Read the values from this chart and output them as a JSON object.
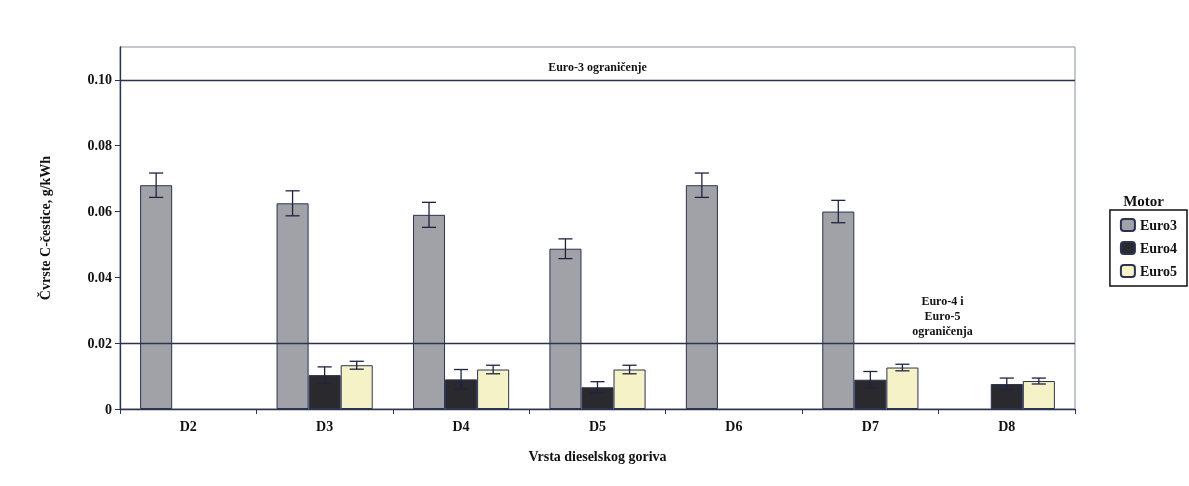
{
  "chart_data": {
    "type": "bar",
    "xlabel": "Vrsta dieselskog goriva",
    "ylabel": "Čvrste C-čestice, g/kWh",
    "legend_title": "Motor",
    "categories": [
      "D2",
      "D3",
      "D4",
      "D5",
      "D6",
      "D7",
      "D8"
    ],
    "series": [
      {
        "name": "Euro3",
        "color": "#a0a2a8",
        "values": [
          0.068,
          0.0625,
          0.059,
          0.0487,
          0.068,
          0.06,
          null
        ],
        "errors": [
          0.0037,
          0.0038,
          0.0038,
          0.003,
          0.0037,
          0.0034,
          null
        ]
      },
      {
        "name": "Euro4",
        "color": "#2a2a2e",
        "values": [
          null,
          0.0103,
          0.009,
          0.0066,
          null,
          0.0089,
          0.0076
        ],
        "errors": [
          null,
          0.0025,
          0.003,
          0.0017,
          null,
          0.0025,
          0.0018
        ]
      },
      {
        "name": "Euro5",
        "color": "#f5f2c8",
        "values": [
          null,
          0.0133,
          0.012,
          0.012,
          null,
          0.0126,
          0.0085
        ],
        "errors": [
          null,
          0.0012,
          0.0013,
          0.0013,
          null,
          0.001,
          0.0009
        ]
      }
    ],
    "ylim": [
      0,
      0.11
    ],
    "yticks": [
      0,
      {
        "value": 0.02,
        "label": "0.02"
      },
      {
        "value": 0.04,
        "label": "0.04"
      },
      {
        "value": 0.06,
        "label": "0.06"
      },
      {
        "value": 0.08,
        "label": "0.08"
      },
      {
        "value": 0.1,
        "label": "0.10"
      }
    ],
    "ref_lines": [
      {
        "axis": "y",
        "value": 0.1,
        "label": "Euro-3 ograničenje",
        "color": "#2b3350"
      },
      {
        "axis": "y",
        "value": 0.02,
        "label": "Euro-4 i\nEuro-5\nograničenja",
        "color": "#2b3350"
      }
    ],
    "grid": false,
    "legend": "right"
  }
}
